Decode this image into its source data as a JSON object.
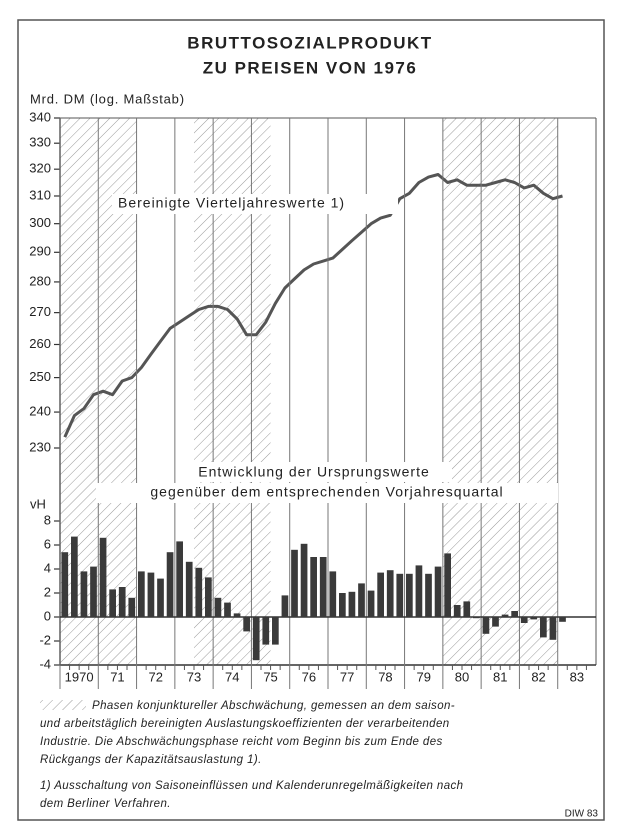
{
  "title_lines": [
    "BRUTTOSOZIALPRODUKT",
    "ZU PREISEN VON 1976"
  ],
  "chart_data": [
    {
      "type": "line",
      "ylabel": "Mrd. DM (log. Maßstab)",
      "annotation": "Bereinigte Vierteljahreswerte 1)",
      "log_scale": true,
      "color": "#555555",
      "ylim": [
        230,
        340
      ],
      "yticks": [
        230,
        240,
        250,
        260,
        270,
        280,
        290,
        300,
        310,
        320,
        330,
        340
      ],
      "xlim": [
        1970,
        1984
      ],
      "shaded_periods": [
        [
          1970,
          1972
        ],
        [
          1973.5,
          1975.5
        ],
        [
          1980,
          1983
        ]
      ],
      "x": [
        1970.125,
        1970.375,
        1970.625,
        1970.875,
        1971.125,
        1971.375,
        1971.625,
        1971.875,
        1972.125,
        1972.375,
        1972.625,
        1972.875,
        1973.125,
        1973.375,
        1973.625,
        1973.875,
        1974.125,
        1974.375,
        1974.625,
        1974.875,
        1975.125,
        1975.375,
        1975.625,
        1975.875,
        1976.125,
        1976.375,
        1976.625,
        1976.875,
        1977.125,
        1977.375,
        1977.625,
        1977.875,
        1978.125,
        1978.375,
        1978.625,
        1978.875,
        1979.125,
        1979.375,
        1979.625,
        1979.875,
        1980.125,
        1980.375,
        1980.625,
        1980.875,
        1981.125,
        1981.375,
        1981.625,
        1981.875,
        1982.125,
        1982.375,
        1982.625,
        1982.875,
        1983.125
      ],
      "values": [
        233,
        239,
        241,
        245,
        246,
        245,
        249,
        250,
        253,
        257,
        261,
        265,
        267,
        269,
        271,
        272,
        272,
        271,
        268,
        263,
        263,
        267,
        273,
        278,
        281,
        284,
        286,
        287,
        288,
        291,
        294,
        297,
        300,
        302,
        303,
        309,
        311,
        315,
        317,
        318,
        315,
        316,
        314,
        314,
        314,
        315,
        316,
        315,
        313,
        314,
        311,
        309,
        310
      ]
    },
    {
      "type": "bar",
      "ylabel": "vH",
      "annotation_lines": [
        "Entwicklung der Ursprungswerte",
        "gegenüber dem entsprechenden Vorjahresquartal"
      ],
      "color": "#3a3a3a",
      "ylim": [
        -4,
        8
      ],
      "yticks": [
        -4,
        -2,
        0,
        2,
        4,
        6,
        8
      ],
      "xlim": [
        1970,
        1984
      ],
      "xticks": [
        {
          "value": 1970.5,
          "label": "1970"
        },
        {
          "value": 1971.5,
          "label": "71"
        },
        {
          "value": 1972.5,
          "label": "72"
        },
        {
          "value": 1973.5,
          "label": "73"
        },
        {
          "value": 1974.5,
          "label": "74"
        },
        {
          "value": 1975.5,
          "label": "75"
        },
        {
          "value": 1976.5,
          "label": "76"
        },
        {
          "value": 1977.5,
          "label": "77"
        },
        {
          "value": 1978.5,
          "label": "78"
        },
        {
          "value": 1979.5,
          "label": "79"
        },
        {
          "value": 1980.5,
          "label": "80"
        },
        {
          "value": 1981.5,
          "label": "81"
        },
        {
          "value": 1982.5,
          "label": "82"
        },
        {
          "value": 1983.5,
          "label": "83"
        }
      ],
      "x": [
        1970.125,
        1970.375,
        1970.625,
        1970.875,
        1971.125,
        1971.375,
        1971.625,
        1971.875,
        1972.125,
        1972.375,
        1972.625,
        1972.875,
        1973.125,
        1973.375,
        1973.625,
        1973.875,
        1974.125,
        1974.375,
        1974.625,
        1974.875,
        1975.125,
        1975.375,
        1975.625,
        1975.875,
        1976.125,
        1976.375,
        1976.625,
        1976.875,
        1977.125,
        1977.375,
        1977.625,
        1977.875,
        1978.125,
        1978.375,
        1978.625,
        1978.875,
        1979.125,
        1979.375,
        1979.625,
        1979.875,
        1980.125,
        1980.375,
        1980.625,
        1980.875,
        1981.125,
        1981.375,
        1981.625,
        1981.875,
        1982.125,
        1982.375,
        1982.625,
        1982.875,
        1983.125
      ],
      "values": [
        5.4,
        6.7,
        3.8,
        4.2,
        6.6,
        2.3,
        2.5,
        1.6,
        3.8,
        3.7,
        3.2,
        5.4,
        6.3,
        4.6,
        4.1,
        3.3,
        1.6,
        1.2,
        0.3,
        -1.2,
        -3.6,
        -2.3,
        -2.3,
        1.8,
        5.6,
        6.1,
        5.0,
        5.0,
        3.8,
        2.0,
        2.1,
        2.8,
        2.2,
        3.7,
        3.9,
        3.6,
        3.6,
        4.3,
        3.6,
        4.2,
        5.3,
        1.0,
        1.3,
        -0.1,
        -1.4,
        -0.8,
        0.2,
        0.5,
        -0.5,
        -0.2,
        -1.7,
        -1.9,
        -0.4
      ]
    }
  ],
  "notes": {
    "shading_lines": [
      "Phasen konjunktureller Abschwächung, gemessen an dem saison-",
      "und arbeitstäglich bereinigten Auslastungskoeffizienten der verarbeitenden",
      "Industrie. Die Abschwächungsphase reicht vom Beginn bis zum Ende des",
      "Rückgangs der Kapazitätsauslastung 1)."
    ],
    "footnote_lines": [
      "1) Ausschaltung von Saisoneinflüssen und Kalenderunregelmäßigkeiten nach",
      "dem Berliner Verfahren."
    ],
    "source": "DIW 83"
  }
}
